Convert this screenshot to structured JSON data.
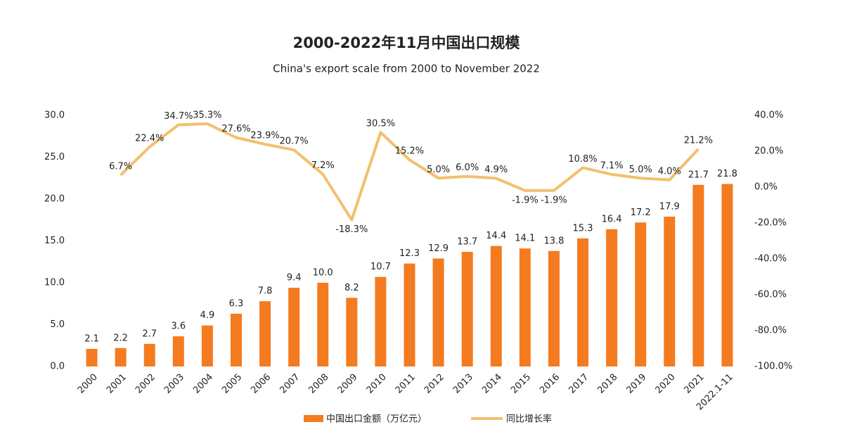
{
  "chart_data": {
    "type": "bar-line",
    "title": "2000-2022年11月中国出口规模",
    "subtitle": "China's export scale from 2000 to November 2022",
    "categories": [
      "2000",
      "2001",
      "2002",
      "2003",
      "2004",
      "2005",
      "2006",
      "2007",
      "2008",
      "2009",
      "2010",
      "2011",
      "2012",
      "2013",
      "2014",
      "2015",
      "2016",
      "2017",
      "2018",
      "2019",
      "2020",
      "2021",
      "2022.1-11"
    ],
    "series": [
      {
        "name": "中国出口金额（万亿元）",
        "type": "bar",
        "color": "#f47b20",
        "values": [
          2.1,
          2.2,
          2.7,
          3.6,
          4.9,
          6.3,
          7.8,
          9.4,
          10.0,
          8.2,
          10.7,
          12.3,
          12.9,
          13.7,
          14.4,
          14.1,
          13.8,
          15.3,
          16.4,
          17.2,
          17.9,
          21.7,
          21.8
        ],
        "value_labels": [
          "2.1",
          "2.2",
          "2.7",
          "3.6",
          "4.9",
          "6.3",
          "7.8",
          "9.4",
          "10.0",
          "8.2",
          "10.7",
          "12.3",
          "12.9",
          "13.7",
          "14.4",
          "14.1",
          "13.8",
          "15.3",
          "16.4",
          "17.2",
          "17.9",
          "21.7",
          "21.8"
        ]
      },
      {
        "name": "同比增长率",
        "type": "line",
        "axis": "y2",
        "color": "#f2c06e",
        "values": [
          null,
          6.7,
          22.4,
          34.7,
          35.3,
          27.6,
          23.9,
          20.7,
          7.2,
          -18.3,
          30.5,
          15.2,
          5.0,
          6.0,
          4.9,
          -1.9,
          -1.9,
          10.8,
          7.1,
          5.0,
          4.0,
          21.2,
          null
        ],
        "value_labels": [
          null,
          "6.7%",
          "22.4%",
          "34.7%",
          "35.3%",
          "27.6%",
          "23.9%",
          "20.7%",
          "7.2%",
          "-18.3%",
          "30.5%",
          "15.2%",
          "5.0%",
          "6.0%",
          "4.9%",
          "-1.9%",
          "-1.9%",
          "10.8%",
          "7.1%",
          "5.0%",
          "4.0%",
          "21.2%",
          null
        ]
      }
    ],
    "ylim": [
      0,
      30
    ],
    "yticks": [
      {
        "value": 0,
        "label": "0.0"
      },
      {
        "value": 5,
        "label": "5.0"
      },
      {
        "value": 10,
        "label": "10.0"
      },
      {
        "value": 15,
        "label": "15.0"
      },
      {
        "value": 20,
        "label": "20.0"
      },
      {
        "value": 25,
        "label": "25.0"
      },
      {
        "value": 30,
        "label": "30.0"
      }
    ],
    "y2lim": [
      -100,
      40
    ],
    "y2ticks": [
      {
        "value": -100,
        "label": "-100.0%"
      },
      {
        "value": -80,
        "label": "-80.0%"
      },
      {
        "value": -60,
        "label": "-60.0%"
      },
      {
        "value": -40,
        "label": "-40.0%"
      },
      {
        "value": -20,
        "label": "-20.0%"
      },
      {
        "value": 0,
        "label": "0.0%"
      },
      {
        "value": 20,
        "label": "20.0%"
      },
      {
        "value": 40,
        "label": "40.0%"
      }
    ],
    "grid": false,
    "legend": "bottom"
  }
}
